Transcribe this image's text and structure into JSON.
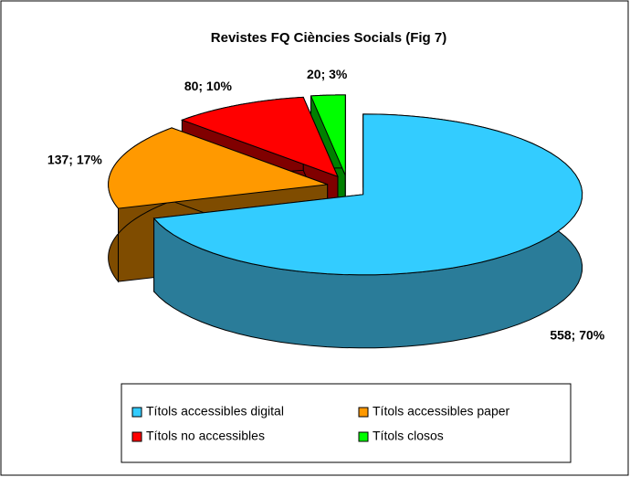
{
  "chart_data": {
    "type": "pie",
    "title": "Revistes FQ Ciències Socials (Fig 7)",
    "categories": [
      "Títols accessibles digital",
      "Títols accessibles paper",
      "Títols no accessibles",
      "Títols closos"
    ],
    "values": [
      558,
      137,
      80,
      20
    ],
    "value_labels": [
      "558; 70%",
      "137; 17%",
      "80; 10%",
      "20; 3%"
    ],
    "colors": [
      "#33CCFF",
      "#FF9900",
      "#FF0000",
      "#00FF00"
    ],
    "side_colors": [
      "#2A7C99",
      "#7F4C00",
      "#800000",
      "#008000"
    ],
    "legend": "bottom"
  }
}
